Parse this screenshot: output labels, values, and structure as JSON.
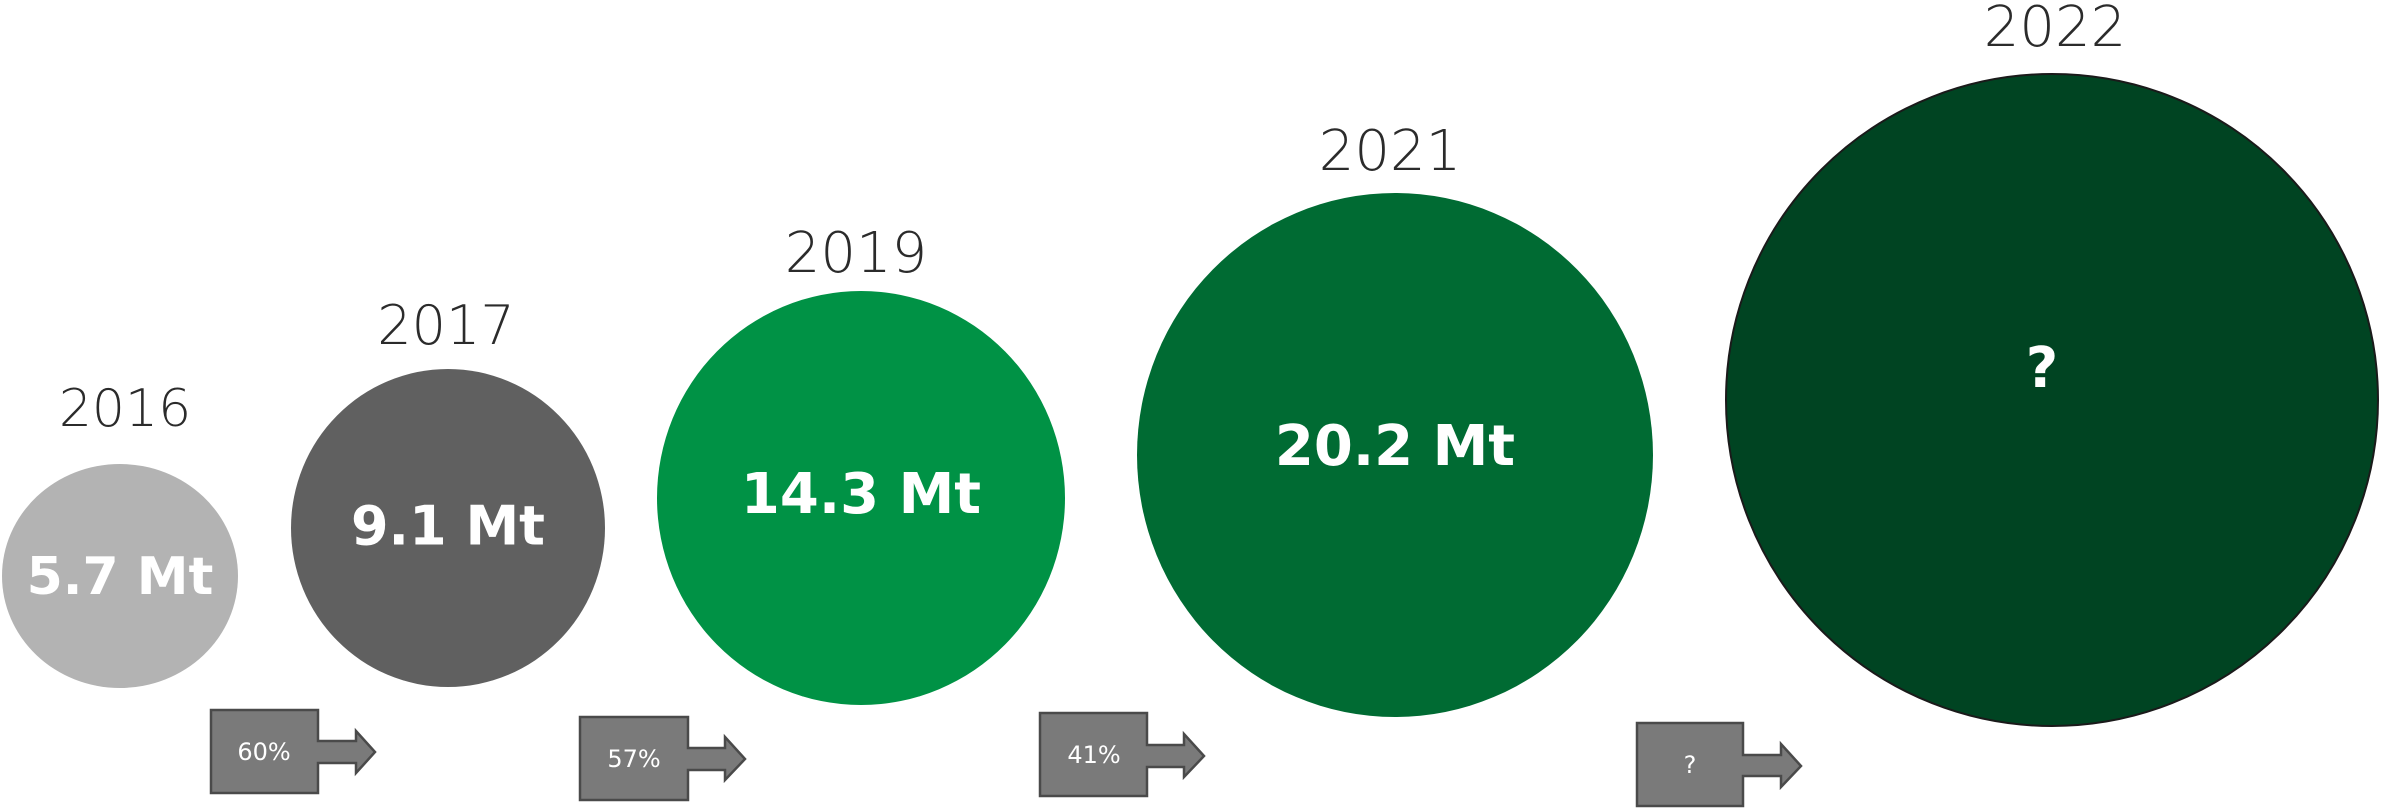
{
  "chart_data": {
    "type": "bubble",
    "title": "",
    "series": [
      {
        "year": "2016",
        "label": "5.7 Mt",
        "value": 5.7,
        "color": "#b3b3b3"
      },
      {
        "year": "2017",
        "label": "9.1 Mt",
        "value": 9.1,
        "color": "#606060"
      },
      {
        "year": "2019",
        "label": "14.3 Mt",
        "value": 14.3,
        "color": "#009245"
      },
      {
        "year": "2021",
        "label": "20.2 Mt",
        "value": 20.2,
        "color": "#006b33"
      },
      {
        "year": "2022",
        "label": "?",
        "value": null,
        "color": "#004422"
      }
    ],
    "growth": [
      {
        "from": "2016",
        "to": "2017",
        "label": "60%"
      },
      {
        "from": "2017",
        "to": "2019",
        "label": "57%"
      },
      {
        "from": "2019",
        "to": "2021",
        "label": "41%"
      },
      {
        "from": "2021",
        "to": "2022",
        "label": "?"
      }
    ]
  }
}
